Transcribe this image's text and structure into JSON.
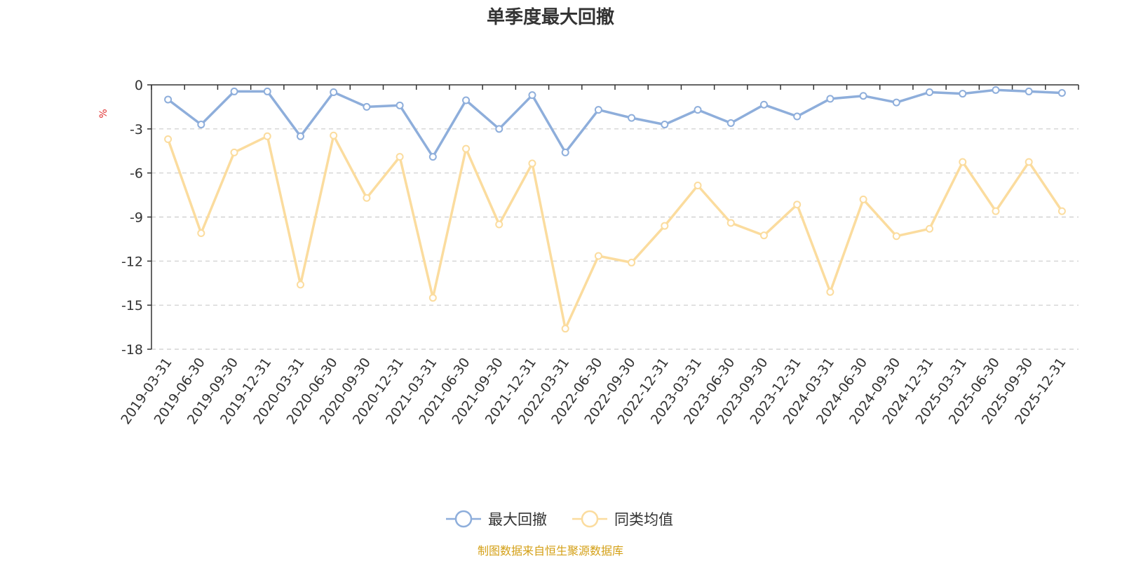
{
  "chart_data": {
    "type": "line",
    "title": "单季度最大回撤",
    "ylabel": "%",
    "xlabel": "",
    "ylim": [
      -18,
      0
    ],
    "yticks": [
      0,
      -3,
      -6,
      -9,
      -12,
      -15,
      -18
    ],
    "grid": true,
    "legend_position": "bottom",
    "categories": [
      "2019-03-31",
      "2019-06-30",
      "2019-09-30",
      "2019-12-31",
      "2020-03-31",
      "2020-06-30",
      "2020-09-30",
      "2020-12-31",
      "2021-03-31",
      "2021-06-30",
      "2021-09-30",
      "2021-12-31",
      "2022-03-31",
      "2022-06-30",
      "2022-09-30",
      "2022-12-31",
      "2023-03-31",
      "2023-06-30",
      "2023-09-30",
      "2023-12-31",
      "2024-03-31",
      "2024-06-30",
      "2024-09-30",
      "2024-12-31",
      "2025-03-31",
      "2025-06-30",
      "2025-09-30",
      "2025-12-31"
    ],
    "series": [
      {
        "name": "最大回撤",
        "color": "#8eaedb",
        "values": [
          -1.0,
          -2.7,
          -0.45,
          -0.45,
          -3.5,
          -0.5,
          -1.5,
          -1.4,
          -4.9,
          -1.05,
          -3.0,
          -0.7,
          -4.6,
          -1.7,
          -2.25,
          -2.7,
          -1.7,
          -2.6,
          -1.35,
          -2.15,
          -0.95,
          -0.75,
          -1.2,
          -0.5,
          -0.6,
          -0.35,
          -0.45,
          -0.55
        ]
      },
      {
        "name": "同类均值",
        "color": "#fbdc9e",
        "values": [
          -3.7,
          -10.1,
          -4.6,
          -3.5,
          -13.6,
          -3.45,
          -7.7,
          -4.9,
          -14.5,
          -4.35,
          -9.5,
          -5.35,
          -16.6,
          -11.65,
          -12.1,
          -9.6,
          -6.85,
          -9.4,
          -10.25,
          -8.15,
          -14.1,
          -7.8,
          -10.3,
          -9.8,
          -5.25,
          -8.6,
          -5.25,
          -8.6
        ]
      }
    ],
    "source": "制图数据来自恒生聚源数据库",
    "source_color": "#d4a017",
    "unit_color": "#e03030",
    "axis_color": "#333333",
    "grid_color": "#cccccc",
    "text_color": "#333333"
  }
}
